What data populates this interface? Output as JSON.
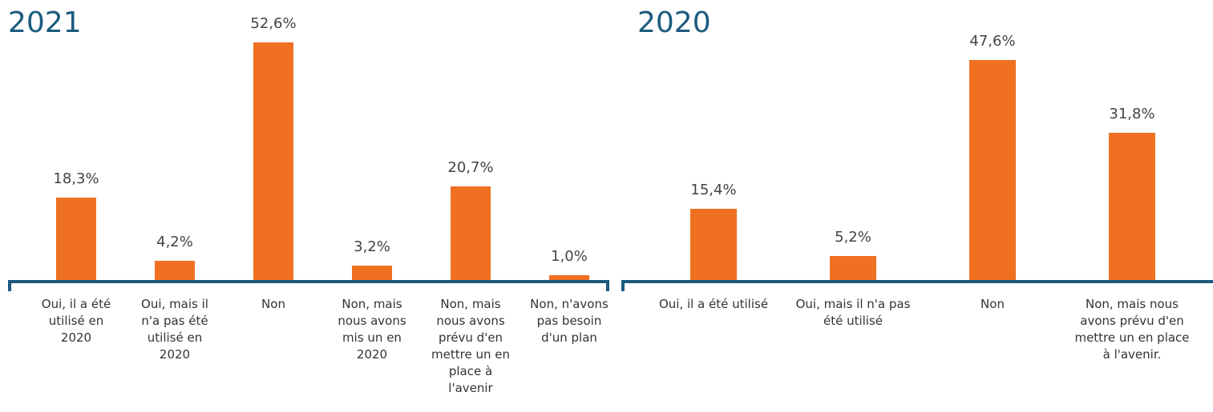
{
  "chart_data": [
    {
      "type": "bar",
      "title": "2021",
      "color": "#f07022",
      "categories": [
        "Oui, il a été utilisé en 2020",
        "Oui, mais il n'a pas été utilisé en 2020",
        "Non",
        "Non, mais nous avons mis un en 2020",
        "Non, mais nous avons prévu d'en mettre un en place à l'avenir",
        "Non, n'avons pas besoin d'un plan"
      ],
      "values": [
        18.3,
        4.2,
        52.6,
        3.2,
        20.7,
        1.0
      ],
      "value_labels": [
        "18,3%",
        "4,2%",
        "52,6%",
        "3,2%",
        "20,7%",
        "1,0%"
      ]
    },
    {
      "type": "bar",
      "title": "2020",
      "color": "#f07022",
      "categories": [
        "Oui, il a été utilisé",
        "Oui, mais il n'a pas été utilisé",
        "Non",
        "Non, mais nous avons prévu d'en mettre un en place à l'avenir."
      ],
      "values": [
        15.4,
        5.2,
        47.6,
        31.8
      ],
      "value_labels": [
        "15,4%",
        "5,2%",
        "47,6%",
        "31,8%"
      ]
    }
  ]
}
